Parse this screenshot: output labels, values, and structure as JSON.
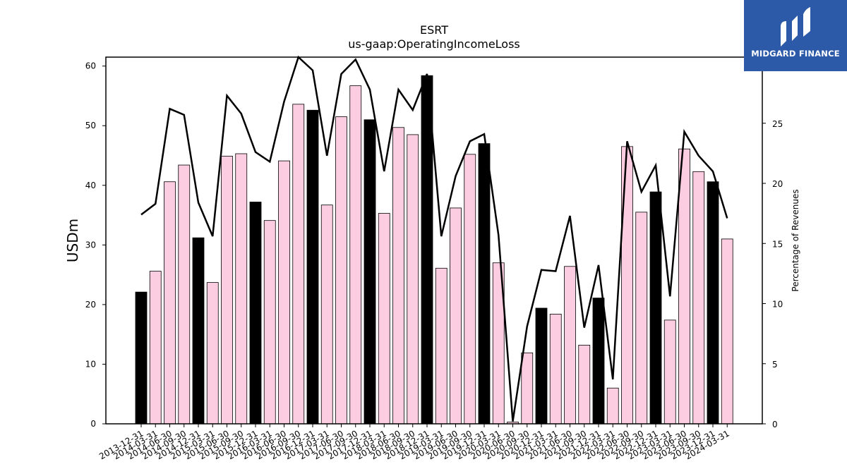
{
  "brand": {
    "name": "MIDGARD FINANCE",
    "bg_color": "#2d5aa8"
  },
  "chart_data": {
    "type": "bar",
    "title": "ESRT",
    "subtitle": "us-gaap:OperatingIncomeLoss",
    "ylabel": "USDm",
    "y2label": "Percentage of Revenues",
    "ylim": [
      0,
      61.5
    ],
    "y2lim": [
      0,
      30.5
    ],
    "yticks": [
      0,
      10,
      20,
      30,
      40,
      50,
      60
    ],
    "y2ticks": [
      0,
      5,
      10,
      15,
      20,
      25,
      30
    ],
    "colors": {
      "annual_bar": "#000000",
      "quarter_bar": "#fccde0",
      "line": "#000000"
    },
    "categories": [
      "2013-12-31",
      "2014-03-31",
      "2014-06-30",
      "2014-09-30",
      "2014-12-31",
      "2015-03-31",
      "2015-06-30",
      "2015-09-30",
      "2015-12-31",
      "2016-03-31",
      "2016-06-30",
      "2016-09-30",
      "2016-12-31",
      "2017-03-31",
      "2017-06-30",
      "2017-09-30",
      "2017-12-31",
      "2018-03-31",
      "2018-06-30",
      "2018-09-30",
      "2018-12-31",
      "2019-03-31",
      "2019-06-30",
      "2019-09-30",
      "2019-12-31",
      "2020-03-31",
      "2020-06-30",
      "2020-09-30",
      "2020-12-31",
      "2021-03-31",
      "2021-06-30",
      "2021-09-30",
      "2021-12-31",
      "2022-03-31",
      "2022-06-30",
      "2022-09-30",
      "2022-12-31",
      "2023-03-31",
      "2023-06-30",
      "2023-09-30",
      "2023-12-31",
      "2024-03-31"
    ],
    "values": [
      22.1,
      25.6,
      40.6,
      43.4,
      31.2,
      23.7,
      44.9,
      45.3,
      37.2,
      34.1,
      44.1,
      53.6,
      52.6,
      36.7,
      51.5,
      56.7,
      51.0,
      35.3,
      49.7,
      48.5,
      58.4,
      26.1,
      36.2,
      45.2,
      47.0,
      27.0,
      0.3,
      11.9,
      19.4,
      18.4,
      26.4,
      13.2,
      21.1,
      6.0,
      46.5,
      35.5,
      38.9,
      17.4,
      46.1,
      42.3,
      40.6,
      31.0
    ],
    "highlight": [
      true,
      false,
      false,
      false,
      true,
      false,
      false,
      false,
      true,
      false,
      false,
      false,
      true,
      false,
      false,
      false,
      true,
      false,
      false,
      false,
      true,
      false,
      false,
      false,
      true,
      false,
      false,
      false,
      true,
      false,
      false,
      false,
      true,
      false,
      false,
      false,
      true,
      false,
      false,
      false,
      true,
      false
    ],
    "line_series": {
      "name": "",
      "values": [
        17.4,
        18.3,
        26.2,
        25.7,
        18.4,
        15.6,
        27.3,
        25.8,
        22.6,
        21.8,
        26.8,
        30.5,
        29.4,
        22.3,
        29.1,
        30.3,
        27.8,
        21.0,
        27.8,
        26.1,
        29.1,
        15.6,
        20.6,
        23.5,
        24.1,
        15.7,
        0.2,
        8.1,
        12.8,
        12.7,
        17.3,
        8.0,
        13.2,
        3.7,
        23.5,
        19.3,
        21.5,
        10.6,
        24.3,
        22.3,
        21.0,
        17.1
      ]
    }
  }
}
